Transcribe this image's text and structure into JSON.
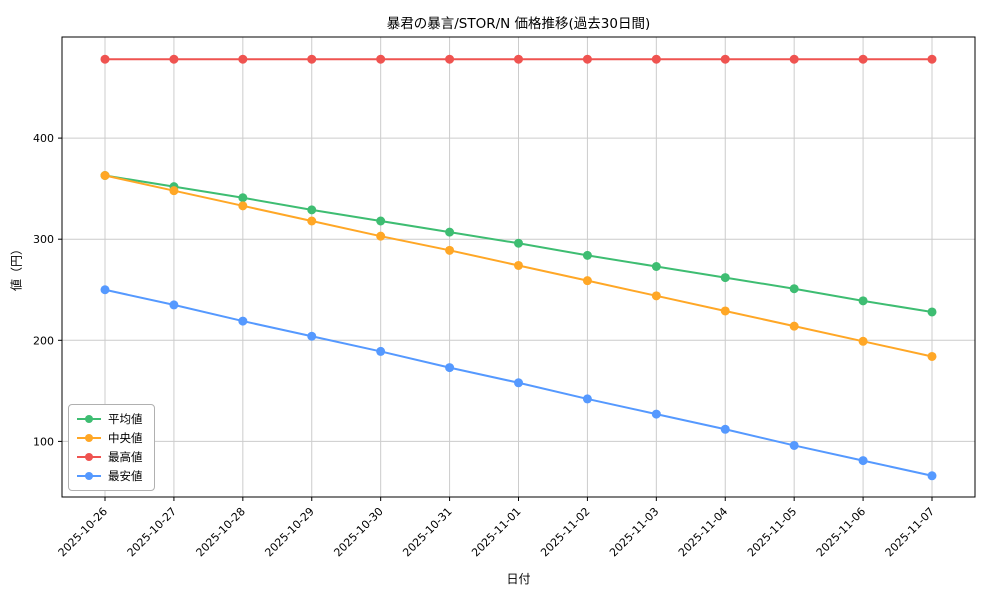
{
  "chart_data": {
    "type": "line",
    "title": "暴君の暴言/STOR/N 価格推移(過去30日間)",
    "xlabel": "日付",
    "ylabel": "値（円）",
    "ylim": [
      45,
      500
    ],
    "yticks": [
      100,
      200,
      300,
      400
    ],
    "grid": true,
    "legend_position": "lower-left",
    "categories": [
      "2025-10-26",
      "2025-10-27",
      "2025-10-28",
      "2025-10-29",
      "2025-10-30",
      "2025-10-31",
      "2025-11-01",
      "2025-11-02",
      "2025-11-03",
      "2025-11-04",
      "2025-11-05",
      "2025-11-06",
      "2025-11-07"
    ],
    "series": [
      {
        "name": "平均値",
        "color": "#3ebd72",
        "values": [
          363,
          352,
          341,
          329,
          318,
          307,
          296,
          284,
          273,
          262,
          251,
          239,
          228
        ]
      },
      {
        "name": "中央値",
        "color": "#ffa726",
        "values": [
          363,
          348,
          333,
          318,
          303,
          289,
          274,
          259,
          244,
          229,
          214,
          199,
          184
        ]
      },
      {
        "name": "最高値",
        "color": "#ef5350",
        "values": [
          478,
          478,
          478,
          478,
          478,
          478,
          478,
          478,
          478,
          478,
          478,
          478,
          478
        ]
      },
      {
        "name": "最安値",
        "color": "#5599ff",
        "values": [
          250,
          235,
          219,
          204,
          189,
          173,
          158,
          142,
          127,
          112,
          96,
          81,
          66
        ]
      }
    ]
  }
}
